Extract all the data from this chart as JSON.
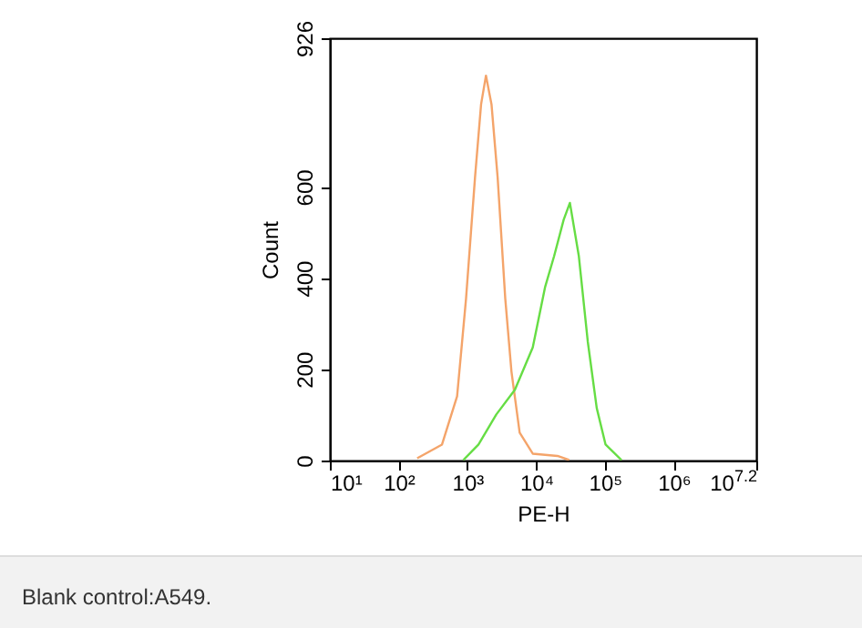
{
  "chart_data": {
    "type": "line",
    "xlabel": "PE-H",
    "ylabel": "Count",
    "log": "x",
    "grid": false,
    "legend": false,
    "marker": "none",
    "line_style": "solid",
    "xlim": [
      10,
      15848932
    ],
    "xticks": [
      {
        "value": 10,
        "label": "10¹"
      },
      {
        "value": 100,
        "label": "10²"
      },
      {
        "value": 1000,
        "label": "10³"
      },
      {
        "value": 10000,
        "label": "10⁴"
      },
      {
        "value": 100000,
        "label": "10⁵"
      },
      {
        "value": 1000000,
        "label": "10⁶"
      },
      {
        "value": 15848932,
        "label": "10$^{7.2}$"
      }
    ],
    "ylim": [
      0,
      926
    ],
    "yticks": [
      0,
      200,
      400,
      600,
      926
    ],
    "series": [
      {
        "color": "#f4a46a",
        "x": [
          186,
          427,
          708,
          955,
          1290,
          1580,
          1860,
          2240,
          2750,
          3550,
          4370,
          5750,
          8910,
          20400,
          30200
        ],
        "values": [
          5,
          35,
          141,
          355,
          621,
          781,
          844,
          781,
          621,
          355,
          195,
          61,
          15,
          10,
          1
        ]
      },
      {
        "color": "#66dd44",
        "x": [
          871,
          1450,
          2630,
          4900,
          8910,
          13500,
          18200,
          25100,
          30900,
          41700,
          56200,
          75900,
          102000,
          174000
        ],
        "values": [
          1,
          35,
          101,
          155,
          248,
          381,
          448,
          528,
          565,
          448,
          261,
          115,
          35,
          1
        ]
      }
    ],
    "annotations": [
      "Blank control:A549."
    ]
  }
}
